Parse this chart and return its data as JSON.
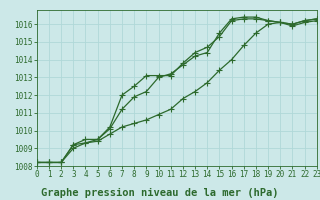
{
  "title": "Graphe pression niveau de la mer (hPa)",
  "bg_color": "#cce8e8",
  "grid_color": "#b0d8d8",
  "line_color": "#2d6a2d",
  "xlim": [
    0,
    23
  ],
  "ylim": [
    1008,
    1016.8
  ],
  "xticks": [
    0,
    1,
    2,
    3,
    4,
    5,
    6,
    7,
    8,
    9,
    10,
    11,
    12,
    13,
    14,
    15,
    16,
    17,
    18,
    19,
    20,
    21,
    22,
    23
  ],
  "yticks": [
    1008,
    1009,
    1010,
    1011,
    1012,
    1013,
    1014,
    1015,
    1016
  ],
  "series": [
    [
      1008.2,
      1008.2,
      1008.2,
      1009.2,
      1009.3,
      1009.5,
      1010.1,
      1011.2,
      1011.9,
      1012.2,
      1013.0,
      1013.2,
      1013.7,
      1014.2,
      1014.4,
      1015.5,
      1016.3,
      1016.4,
      1016.4,
      1016.2,
      1016.1,
      1015.9,
      1016.1,
      1016.2
    ],
    [
      1008.2,
      1008.2,
      1008.2,
      1009.2,
      1009.5,
      1009.5,
      1010.2,
      1012.0,
      1012.5,
      1013.1,
      1013.1,
      1013.1,
      1013.8,
      1014.4,
      1014.7,
      1015.3,
      1016.2,
      1016.3,
      1016.3,
      1016.2,
      1016.1,
      1016.0,
      1016.2,
      1016.3
    ],
    [
      1008.2,
      1008.2,
      1008.2,
      1009.0,
      1009.3,
      1009.4,
      1009.8,
      1010.2,
      1010.4,
      1010.6,
      1010.9,
      1011.2,
      1011.8,
      1012.2,
      1012.7,
      1013.4,
      1014.0,
      1014.8,
      1015.5,
      1016.0,
      1016.1,
      1016.0,
      1016.2,
      1016.3
    ]
  ],
  "marker": "+",
  "markersize": 4,
  "linewidth": 0.9,
  "title_fontsize": 7.5,
  "tick_fontsize": 5.5
}
